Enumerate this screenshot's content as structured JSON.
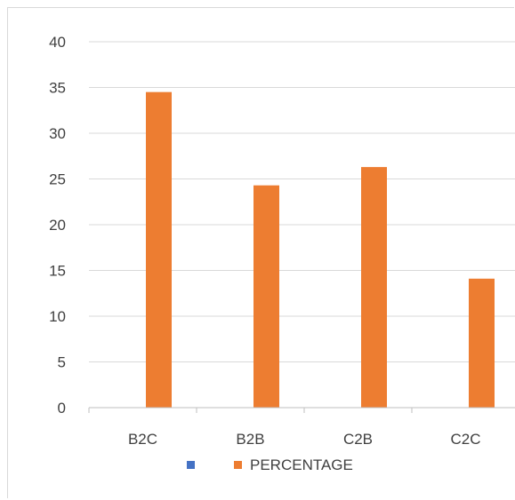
{
  "chart_data": {
    "type": "bar",
    "title": "",
    "xlabel": "",
    "ylabel": "",
    "categories": [
      "B2C",
      "B2B",
      "C2B",
      "C2C"
    ],
    "ylim": [
      0,
      40
    ],
    "ytick_step": 5,
    "yticks": [
      "0",
      "5",
      "10",
      "15",
      "20",
      "25",
      "30",
      "35",
      "40"
    ],
    "grid": true,
    "legend_position": "bottom",
    "series": [
      {
        "name": "",
        "color": "#4472C4",
        "values": [
          0,
          0,
          0,
          0
        ]
      },
      {
        "name": "PERCENTAGE",
        "color": "#ED7D31",
        "values": [
          34.5,
          24.3,
          26.3,
          14.1
        ]
      }
    ]
  }
}
